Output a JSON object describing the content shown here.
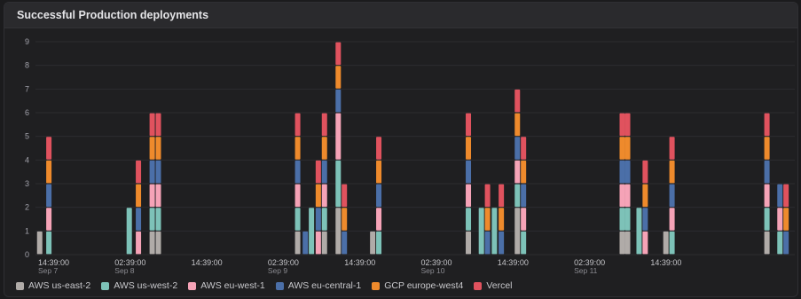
{
  "panel": {
    "title": "Successful Production deployments"
  },
  "colors": {
    "AWS us-east-2": "#b0aba8",
    "AWS us-west-2": "#7dc2b8",
    "AWS eu-west-1": "#f5a3b7",
    "AWS eu-central-1": "#4b6fa8",
    "GCP europe-west4": "#ee8a2c",
    "Vercel": "#e0525e"
  },
  "chart_data": {
    "type": "bar",
    "stacked": true,
    "ylim": [
      0,
      9
    ],
    "yticks": [
      0,
      1,
      2,
      3,
      4,
      5,
      6,
      7,
      8,
      9
    ],
    "grid": true,
    "legend_position": "bottom-left",
    "x_ticks": [
      {
        "time": "14:39:00",
        "date": "Sep 7"
      },
      {
        "time": "02:39:00",
        "date": "Sep 8"
      },
      {
        "time": "14:39:00",
        "date": ""
      },
      {
        "time": "02:39:00",
        "date": "Sep 9"
      },
      {
        "time": "14:39:00",
        "date": ""
      },
      {
        "time": "02:39:00",
        "date": "Sep 10"
      },
      {
        "time": "14:39:00",
        "date": ""
      },
      {
        "time": "02:39:00",
        "date": "Sep 11"
      },
      {
        "time": "14:39:00",
        "date": ""
      }
    ],
    "series_order": [
      "AWS us-east-2",
      "AWS us-west-2",
      "AWS eu-west-1",
      "AWS eu-central-1",
      "GCP europe-west4",
      "Vercel"
    ],
    "bars": [
      {
        "t": 0.8,
        "values": [
          1,
          0,
          0,
          0,
          0,
          0
        ]
      },
      {
        "t": 0.92,
        "values": [
          0,
          1,
          1,
          1,
          1,
          1
        ]
      },
      {
        "t": 1.97,
        "values": [
          0,
          2,
          0,
          0,
          0,
          0
        ]
      },
      {
        "t": 2.09,
        "values": [
          0,
          0,
          1,
          1,
          1,
          1
        ]
      },
      {
        "t": 2.27,
        "values": [
          1,
          1,
          1,
          1,
          1,
          1
        ]
      },
      {
        "t": 2.35,
        "values": [
          1,
          1,
          1,
          1,
          1,
          1
        ]
      },
      {
        "t": 4.17,
        "values": [
          1,
          1,
          1,
          1,
          1,
          1
        ]
      },
      {
        "t": 4.27,
        "values": [
          0,
          0,
          0,
          1,
          0,
          0
        ]
      },
      {
        "t": 4.35,
        "values": [
          0,
          2,
          0,
          0,
          0,
          0
        ]
      },
      {
        "t": 4.44,
        "values": [
          0,
          0,
          1,
          1,
          1,
          1
        ]
      },
      {
        "t": 4.52,
        "values": [
          1,
          1,
          1,
          1,
          1,
          1
        ]
      },
      {
        "t": 4.7,
        "values": [
          2,
          2,
          2,
          1,
          1,
          1
        ]
      },
      {
        "t": 4.78,
        "values": [
          0,
          0,
          0,
          1,
          1,
          1
        ]
      },
      {
        "t": 5.15,
        "values": [
          1,
          0,
          0,
          0,
          0,
          0
        ]
      },
      {
        "t": 5.23,
        "values": [
          0,
          1,
          1,
          1,
          1,
          1
        ]
      },
      {
        "t": 6.4,
        "values": [
          1,
          1,
          1,
          1,
          1,
          1
        ]
      },
      {
        "t": 6.57,
        "values": [
          0,
          2,
          0,
          0,
          0,
          0
        ]
      },
      {
        "t": 6.65,
        "values": [
          0,
          0,
          0,
          1,
          1,
          1
        ]
      },
      {
        "t": 6.74,
        "values": [
          0,
          2,
          0,
          0,
          0,
          0
        ]
      },
      {
        "t": 6.83,
        "values": [
          0,
          0,
          0,
          1,
          1,
          1
        ]
      },
      {
        "t": 7.04,
        "values": [
          2,
          1,
          1,
          1,
          1,
          1
        ]
      },
      {
        "t": 7.12,
        "values": [
          0,
          1,
          1,
          1,
          1,
          1
        ]
      },
      {
        "t": 8.41,
        "values": [
          1,
          1,
          1,
          1,
          1,
          1
        ]
      },
      {
        "t": 8.48,
        "values": [
          1,
          1,
          1,
          1,
          1,
          1
        ]
      },
      {
        "t": 8.63,
        "values": [
          0,
          2,
          0,
          0,
          0,
          0
        ]
      },
      {
        "t": 8.71,
        "values": [
          0,
          0,
          1,
          1,
          1,
          1
        ]
      },
      {
        "t": 8.98,
        "values": [
          1,
          0,
          0,
          0,
          0,
          0
        ]
      },
      {
        "t": 9.06,
        "values": [
          0,
          1,
          1,
          1,
          1,
          1
        ]
      },
      {
        "t": 10.3,
        "values": [
          1,
          1,
          1,
          1,
          1,
          1
        ]
      },
      {
        "t": 10.47,
        "values": [
          0,
          1,
          1,
          1,
          0,
          0
        ]
      },
      {
        "t": 10.55,
        "values": [
          0,
          0,
          0,
          1,
          1,
          1
        ]
      }
    ]
  },
  "legend": [
    {
      "label": "AWS us-east-2",
      "color": "#b0aba8"
    },
    {
      "label": "AWS us-west-2",
      "color": "#7dc2b8"
    },
    {
      "label": "AWS eu-west-1",
      "color": "#f5a3b7"
    },
    {
      "label": "AWS eu-central-1",
      "color": "#4b6fa8"
    },
    {
      "label": "GCP europe-west4",
      "color": "#ee8a2c"
    },
    {
      "label": "Vercel",
      "color": "#e0525e"
    }
  ]
}
